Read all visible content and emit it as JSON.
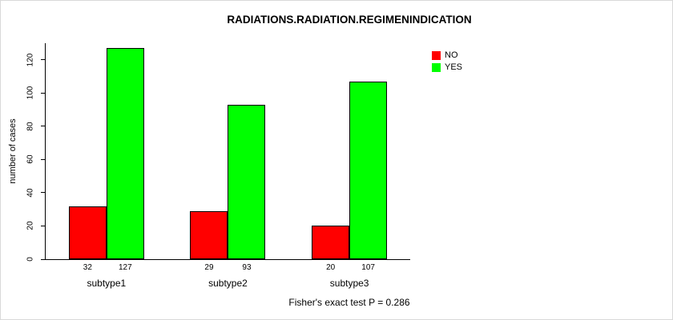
{
  "chart_data": {
    "type": "bar",
    "title": "RADIATIONS.RADIATION.REGIMENINDICATION",
    "ylabel": "number of cases",
    "xlabel": "",
    "categories": [
      "subtype1",
      "subtype2",
      "subtype3"
    ],
    "series": [
      {
        "name": "NO",
        "color": "#ff0000",
        "values": [
          32,
          29,
          20
        ]
      },
      {
        "name": "YES",
        "color": "#00ff00",
        "values": [
          127,
          93,
          107
        ]
      }
    ],
    "yticks": [
      0,
      20,
      40,
      60,
      80,
      100,
      120
    ],
    "ylim": [
      0,
      130
    ],
    "grid": false,
    "legend_position": "top-right",
    "bar_value_labels_shown": true,
    "footnote": "Fisher's exact test P = 0.286"
  }
}
